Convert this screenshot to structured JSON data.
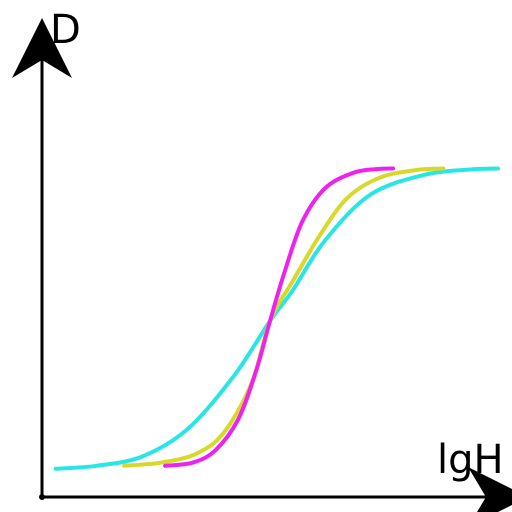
{
  "chart_data": {
    "type": "line",
    "xlabel": "lgH",
    "ylabel": "D",
    "grid": false,
    "legend": "none",
    "axis_color": "#000000",
    "series": [
      {
        "color": "#29e6e6",
        "x": [
          0.03,
          0.12,
          0.22,
          0.32,
          0.42,
          0.5,
          0.55,
          0.62,
          0.72,
          0.84,
          0.94,
          1.0
        ],
        "y": [
          0.02,
          0.03,
          0.06,
          0.15,
          0.32,
          0.5,
          0.6,
          0.76,
          0.91,
          0.975,
          0.992,
          0.995
        ]
      },
      {
        "color": "#d8d82a",
        "x": [
          0.18,
          0.26,
          0.34,
          0.4,
          0.46,
          0.5,
          0.55,
          0.61,
          0.67,
          0.74,
          0.82,
          0.88
        ],
        "y": [
          0.03,
          0.04,
          0.07,
          0.14,
          0.3,
          0.5,
          0.63,
          0.78,
          0.9,
          0.965,
          0.99,
          0.995
        ]
      },
      {
        "color": "#ee22ee",
        "x": [
          0.27,
          0.33,
          0.38,
          0.43,
          0.47,
          0.5,
          0.53,
          0.57,
          0.62,
          0.68,
          0.73,
          0.77
        ],
        "y": [
          0.03,
          0.04,
          0.08,
          0.18,
          0.34,
          0.5,
          0.65,
          0.82,
          0.93,
          0.98,
          0.993,
          0.995
        ]
      }
    ]
  }
}
